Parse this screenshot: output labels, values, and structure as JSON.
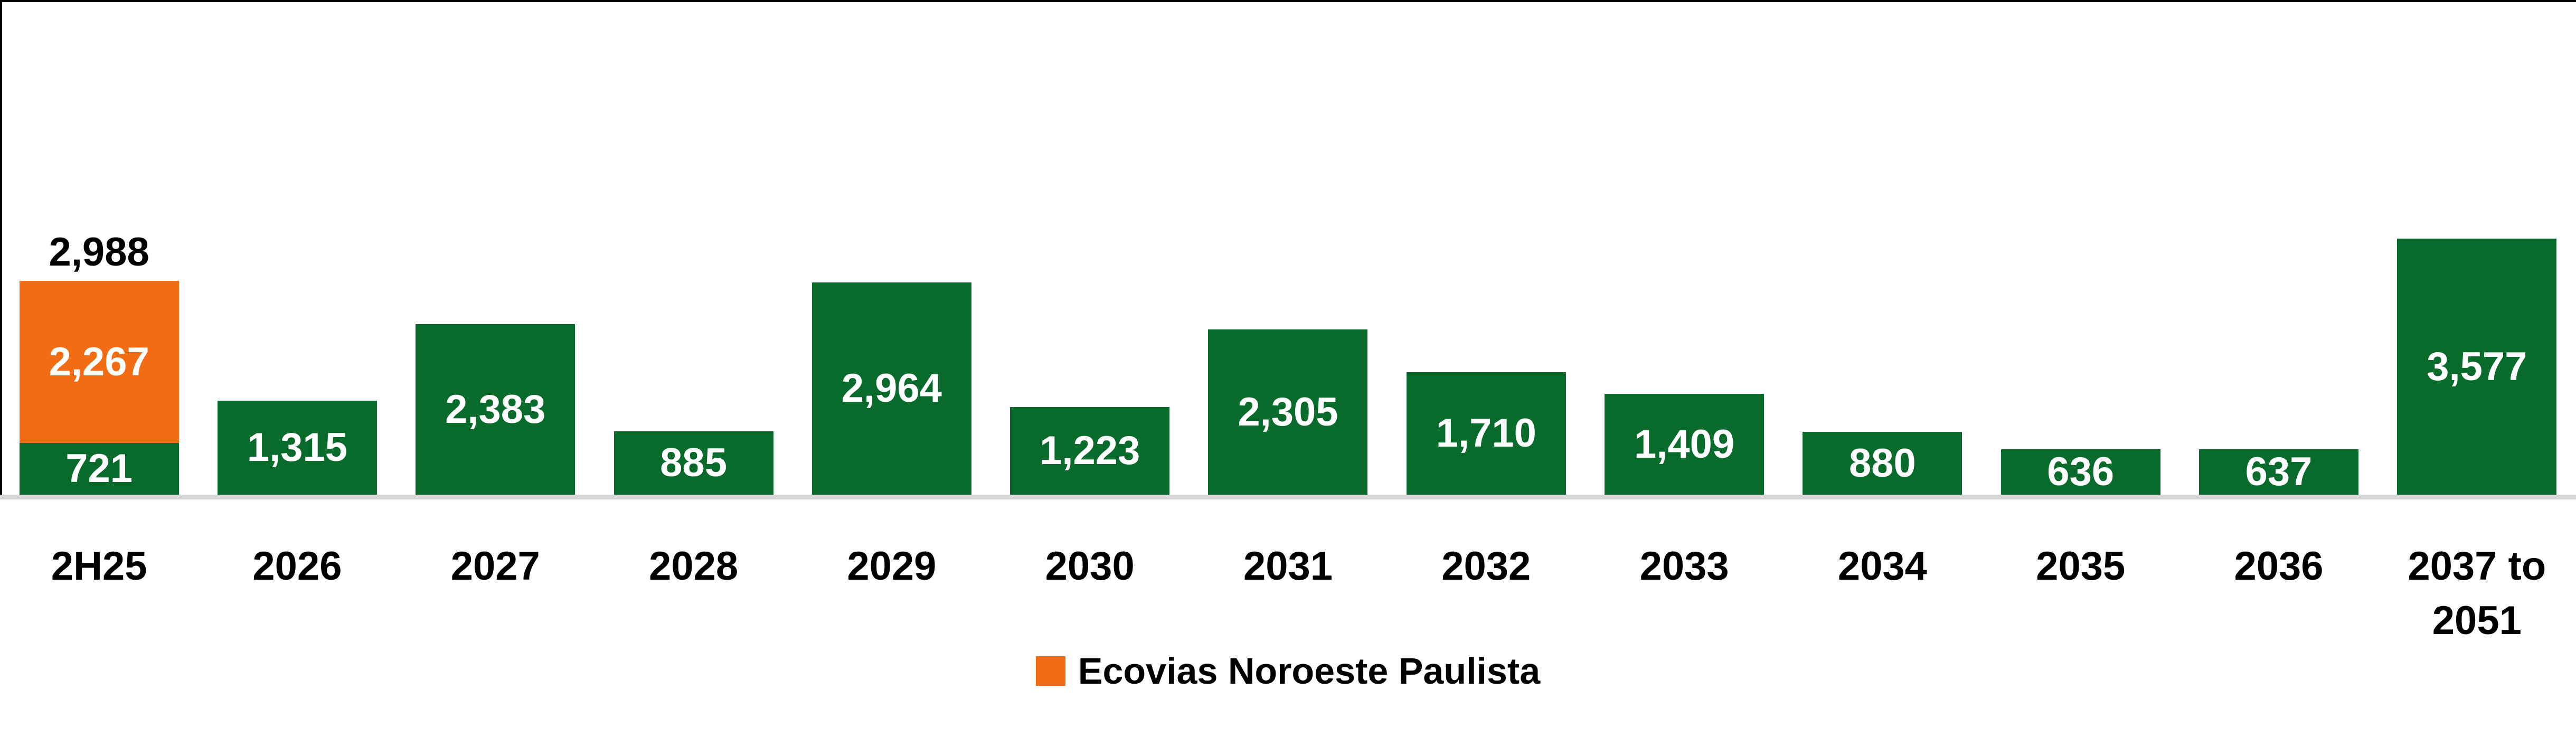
{
  "chart_data": {
    "type": "bar",
    "stacked": true,
    "title": "",
    "xlabel": "",
    "ylabel": "",
    "grid": false,
    "axis_visible": "x-only",
    "ylim": [
      0,
      3577
    ],
    "categories": [
      "2H25",
      "2026",
      "2027",
      "2028",
      "2029",
      "2030",
      "2031",
      "2032",
      "2033",
      "2034",
      "2035",
      "2036",
      "2037 to 2051"
    ],
    "series": [
      {
        "name": "",
        "color_key": "green",
        "values": [
          721,
          1315,
          2383,
          885,
          2964,
          1223,
          2305,
          1710,
          1409,
          880,
          636,
          637,
          3577
        ],
        "labels": [
          "721",
          "1,315",
          "2,383",
          "885",
          "2,964",
          "1,223",
          "2,305",
          "1,710",
          "1,409",
          "880",
          "636",
          "637",
          "3,577"
        ]
      },
      {
        "name": "Ecovias Noroeste Paulista",
        "color_key": "orange",
        "values": [
          2267,
          0,
          0,
          0,
          0,
          0,
          0,
          0,
          0,
          0,
          0,
          0,
          0
        ],
        "labels": [
          "2,267",
          "",
          "",
          "",
          "",
          "",
          "",
          "",
          "",
          "",
          "",
          "",
          ""
        ]
      }
    ],
    "total_label": {
      "category_index": 0,
      "text": "2,988",
      "value": 2988
    },
    "legend": {
      "position": "bottom-center",
      "items": [
        {
          "label": "Ecovias Noroeste Paulista",
          "color_key": "orange"
        }
      ]
    },
    "colors": {
      "green": "#086B2B",
      "orange": "#F26C14",
      "axis_line": "#D6D6D6",
      "inside_label": "#FFFFFF",
      "total_label": "#000000"
    }
  }
}
